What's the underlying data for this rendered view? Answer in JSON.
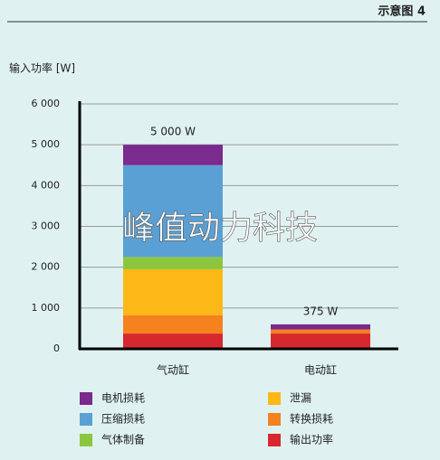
{
  "chart_data": {
    "type": "stacked-bar",
    "header": "示意图 4",
    "y_label": "输入功率 [W]",
    "watermark": "峰值动力科技",
    "categories": [
      "气动缸",
      "电动缸"
    ],
    "series": [
      {
        "name": "输出功率",
        "color": "#d7282f",
        "values": [
          375,
          375
        ]
      },
      {
        "name": "转换损耗",
        "color": "#f4821f",
        "values": [
          450,
          100
        ]
      },
      {
        "name": "泄漏",
        "color": "#fbb817",
        "values": [
          1125,
          0
        ]
      },
      {
        "name": "气体制备",
        "color": "#8cc63f",
        "values": [
          300,
          0
        ]
      },
      {
        "name": "压缩损耗",
        "color": "#5aa0d4",
        "values": [
          2250,
          0
        ]
      },
      {
        "name": "电机损耗",
        "color": "#7b2a8e",
        "values": [
          500,
          125
        ]
      }
    ],
    "annotations": [
      "5 000 W",
      "375 W"
    ],
    "ylim": [
      0,
      6000
    ],
    "yticks": [
      0,
      {
        "value": 1000,
        "label": "1 000"
      },
      {
        "value": 2000,
        "label": "2 000"
      },
      {
        "value": 3000,
        "label": "3 000"
      },
      {
        "value": 4000,
        "label": "4 000"
      },
      {
        "value": 5000,
        "label": "5 000"
      },
      {
        "value": 6000,
        "label": "6 000"
      }
    ],
    "grid": true
  }
}
